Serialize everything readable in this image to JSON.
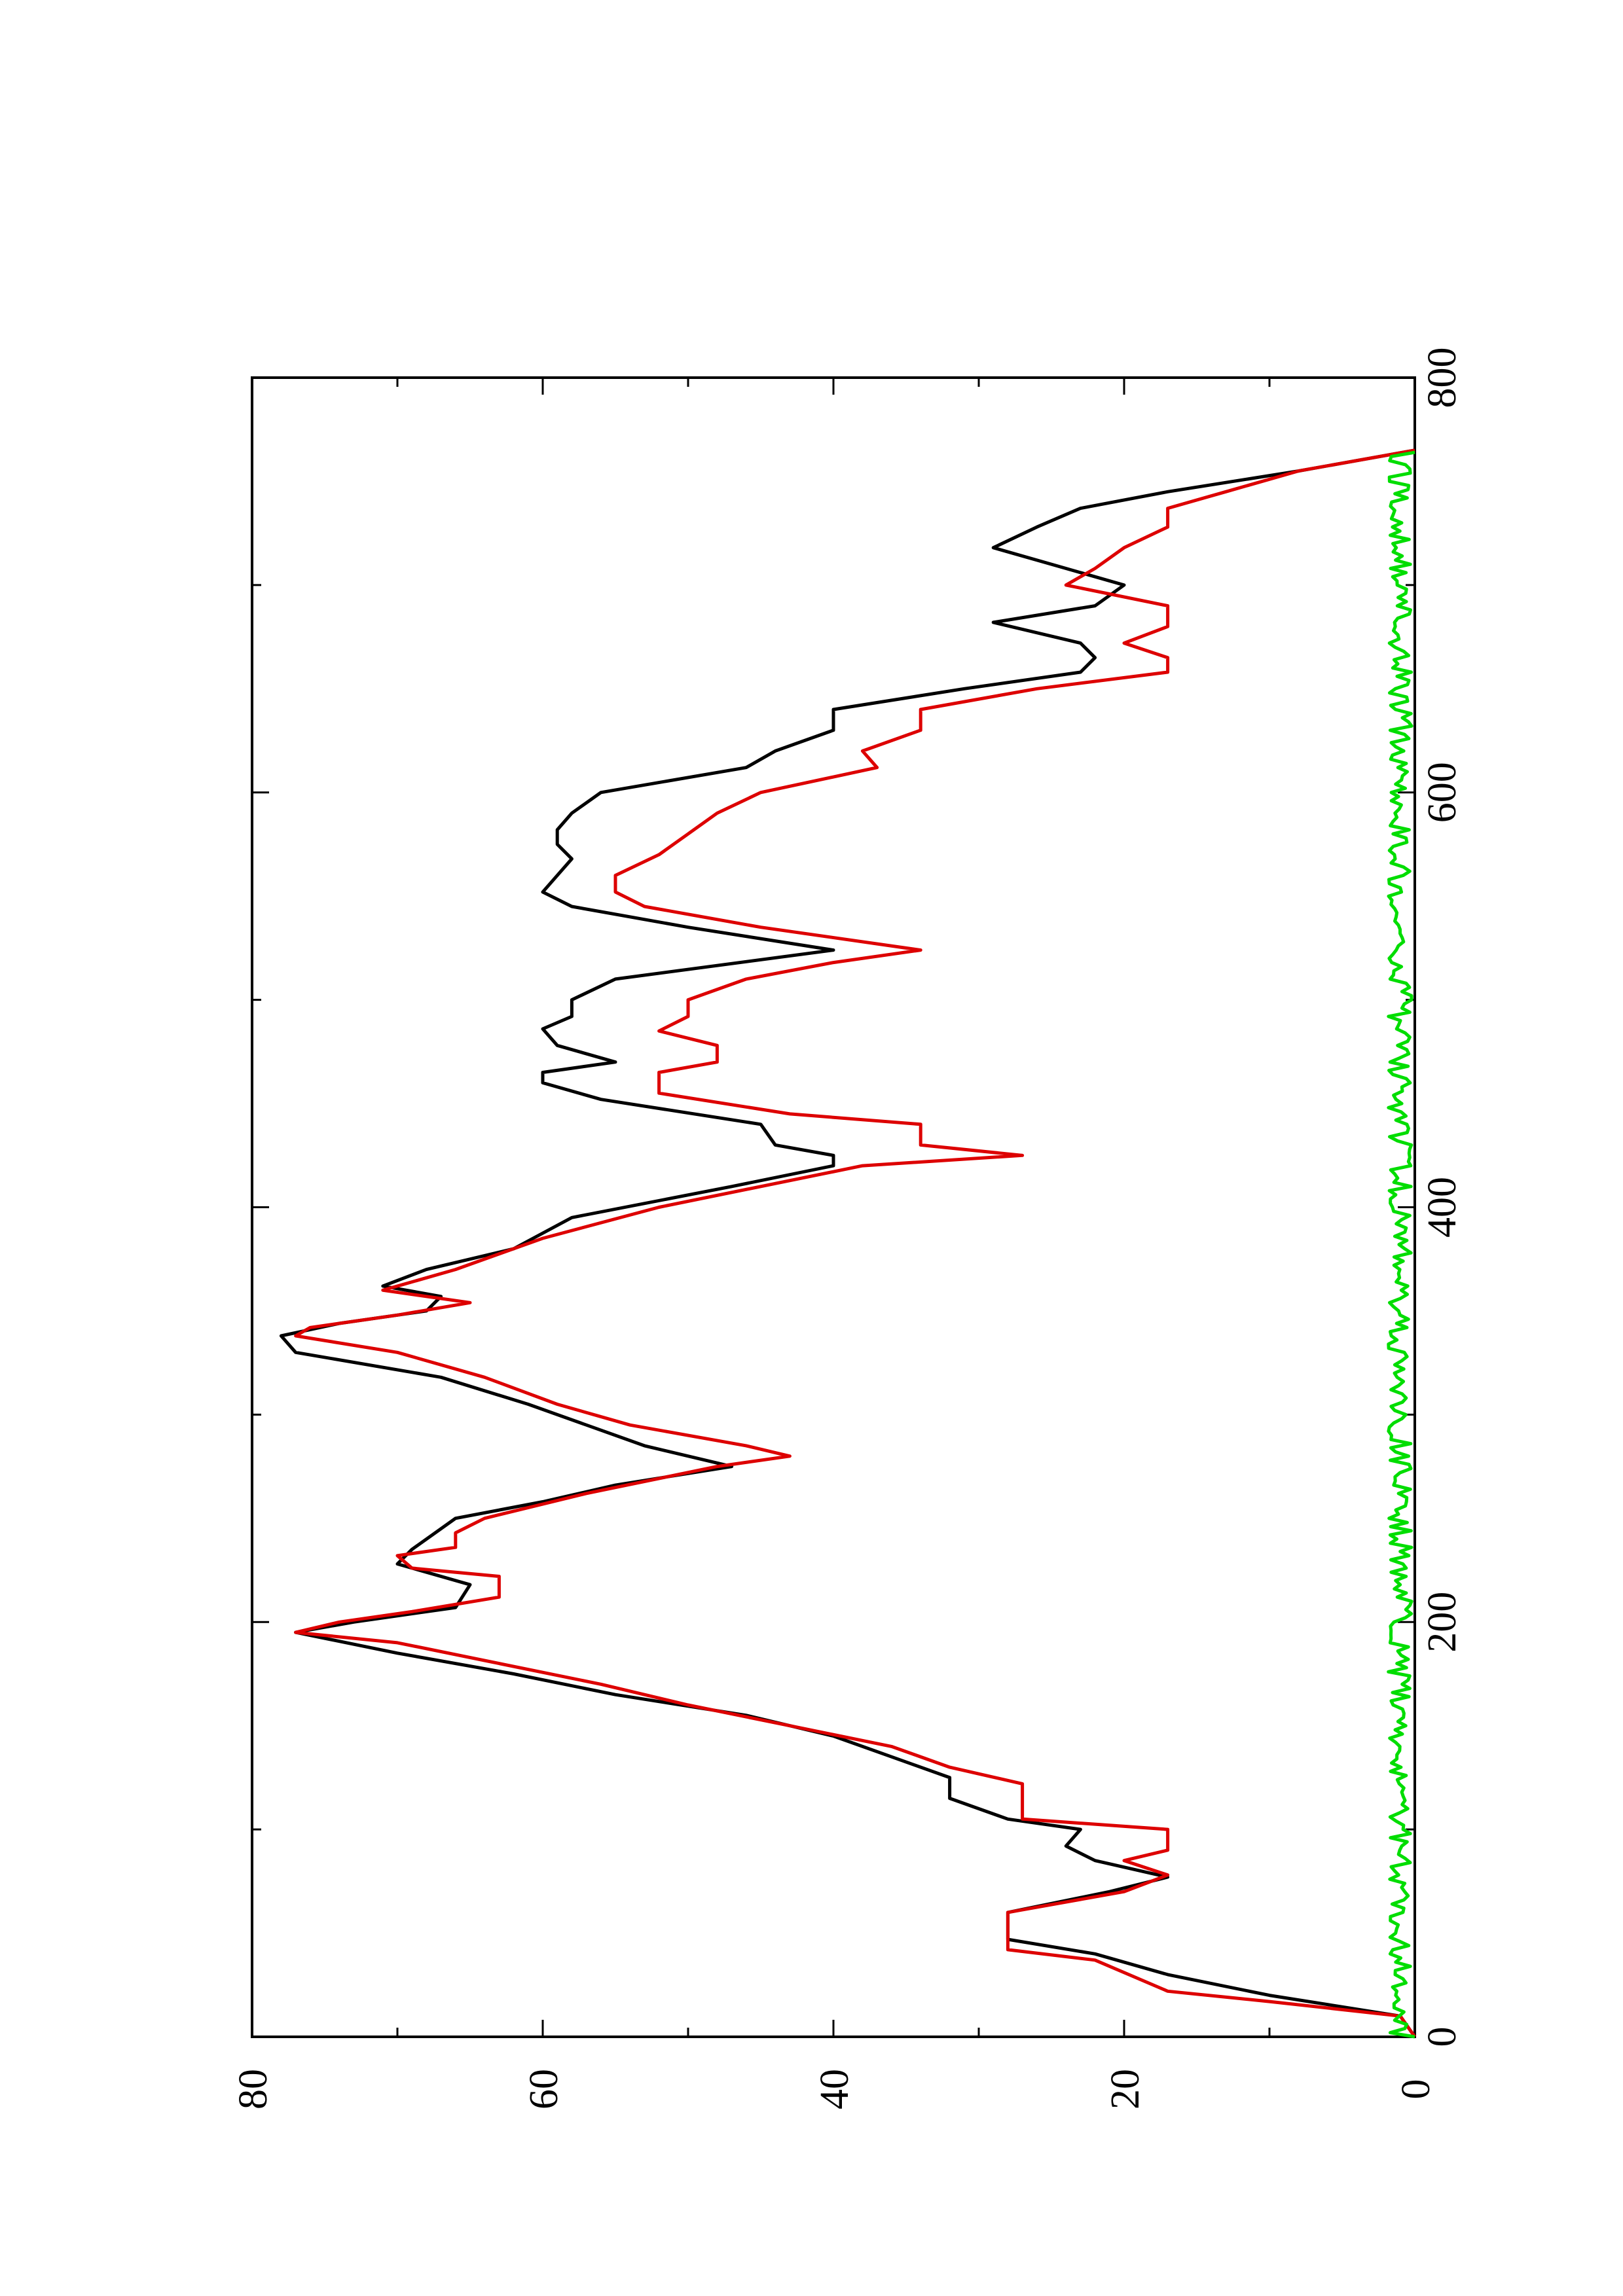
{
  "chart_data": {
    "type": "line",
    "title": "",
    "xlabel": "",
    "ylabel": "",
    "xlim": [
      0,
      800
    ],
    "ylim": [
      0,
      80
    ],
    "x_ticks": [
      0,
      200,
      400,
      600,
      800
    ],
    "y_ticks": [
      0,
      20,
      40,
      60,
      80
    ],
    "x_minor_ticks": [
      100,
      300,
      500,
      700
    ],
    "y_minor_ticks": [
      10,
      30,
      50,
      70
    ],
    "grid": false,
    "legend": "none",
    "orientation": "rotated 90 degrees counter-clockwise on the page",
    "series": [
      {
        "color": "#000000",
        "points": [
          [
            0,
            0
          ],
          [
            10,
            1
          ],
          [
            20,
            10
          ],
          [
            30,
            17
          ],
          [
            40,
            22
          ],
          [
            47,
            28
          ],
          [
            60,
            28
          ],
          [
            70,
            21
          ],
          [
            77,
            17
          ],
          [
            85,
            22
          ],
          [
            92,
            24
          ],
          [
            100,
            23
          ],
          [
            105,
            28
          ],
          [
            115,
            32
          ],
          [
            125,
            32
          ],
          [
            135,
            36
          ],
          [
            145,
            40
          ],
          [
            155,
            46
          ],
          [
            165,
            55
          ],
          [
            175,
            62
          ],
          [
            185,
            70
          ],
          [
            195,
            77
          ],
          [
            200,
            73
          ],
          [
            207,
            66
          ],
          [
            218,
            65
          ],
          [
            228,
            70
          ],
          [
            235,
            69
          ],
          [
            245,
            67
          ],
          [
            250,
            66
          ],
          [
            258,
            60
          ],
          [
            266,
            55
          ],
          [
            275,
            47
          ],
          [
            285,
            53
          ],
          [
            295,
            57
          ],
          [
            305,
            61
          ],
          [
            318,
            67
          ],
          [
            330,
            77
          ],
          [
            338,
            78
          ],
          [
            344,
            74
          ],
          [
            350,
            68
          ],
          [
            357,
            67
          ],
          [
            362,
            71
          ],
          [
            370,
            68
          ],
          [
            380,
            62
          ],
          [
            395,
            58
          ],
          [
            410,
            47
          ],
          [
            420,
            40
          ],
          [
            425,
            40
          ],
          [
            430,
            44
          ],
          [
            440,
            45
          ],
          [
            452,
            56
          ],
          [
            460,
            60
          ],
          [
            465,
            60
          ],
          [
            470,
            55
          ],
          [
            478,
            59
          ],
          [
            486,
            60
          ],
          [
            492,
            58
          ],
          [
            500,
            58
          ],
          [
            510,
            55
          ],
          [
            524,
            40
          ],
          [
            535,
            50
          ],
          [
            545,
            58
          ],
          [
            552,
            60
          ],
          [
            560,
            59
          ],
          [
            568,
            58
          ],
          [
            575,
            59
          ],
          [
            582,
            59
          ],
          [
            590,
            58
          ],
          [
            600,
            56
          ],
          [
            612,
            46
          ],
          [
            620,
            44
          ],
          [
            630,
            40
          ],
          [
            640,
            40
          ],
          [
            650,
            31
          ],
          [
            658,
            23
          ],
          [
            665,
            22
          ],
          [
            672,
            23
          ],
          [
            682,
            29
          ],
          [
            690,
            22
          ],
          [
            700,
            20
          ],
          [
            708,
            24
          ],
          [
            718,
            29
          ],
          [
            728,
            26
          ],
          [
            737,
            23
          ],
          [
            745,
            17
          ],
          [
            755,
            8
          ],
          [
            765,
            0
          ]
        ]
      },
      {
        "color": "#dd0000",
        "points": [
          [
            0,
            0
          ],
          [
            10,
            1
          ],
          [
            17,
            10
          ],
          [
            22,
            17
          ],
          [
            37,
            22
          ],
          [
            42,
            28
          ],
          [
            60,
            28
          ],
          [
            70,
            20
          ],
          [
            78,
            17
          ],
          [
            85,
            20
          ],
          [
            90,
            17
          ],
          [
            100,
            17
          ],
          [
            105,
            27
          ],
          [
            122,
            27
          ],
          [
            130,
            32
          ],
          [
            140,
            36
          ],
          [
            150,
            43
          ],
          [
            160,
            50
          ],
          [
            170,
            56
          ],
          [
            180,
            63
          ],
          [
            190,
            70
          ],
          [
            195,
            77
          ],
          [
            200,
            74
          ],
          [
            205,
            69
          ],
          [
            212,
            63
          ],
          [
            222,
            63
          ],
          [
            226,
            69
          ],
          [
            232,
            70
          ],
          [
            236,
            66
          ],
          [
            243,
            66
          ],
          [
            250,
            64
          ],
          [
            262,
            57
          ],
          [
            275,
            48
          ],
          [
            280,
            43
          ],
          [
            285,
            46
          ],
          [
            295,
            54
          ],
          [
            305,
            59
          ],
          [
            318,
            64
          ],
          [
            330,
            70
          ],
          [
            338,
            77
          ],
          [
            342,
            76
          ],
          [
            348,
            70
          ],
          [
            354,
            65
          ],
          [
            360,
            71
          ],
          [
            370,
            66
          ],
          [
            385,
            60
          ],
          [
            400,
            52
          ],
          [
            410,
            45
          ],
          [
            420,
            38
          ],
          [
            425,
            27
          ],
          [
            430,
            34
          ],
          [
            440,
            34
          ],
          [
            445,
            43
          ],
          [
            455,
            52
          ],
          [
            465,
            52
          ],
          [
            470,
            48
          ],
          [
            478,
            48
          ],
          [
            485,
            52
          ],
          [
            492,
            50
          ],
          [
            500,
            50
          ],
          [
            510,
            46
          ],
          [
            518,
            40
          ],
          [
            524,
            34
          ],
          [
            535,
            45
          ],
          [
            545,
            53
          ],
          [
            552,
            55
          ],
          [
            560,
            55
          ],
          [
            570,
            52
          ],
          [
            580,
            50
          ],
          [
            590,
            48
          ],
          [
            600,
            45
          ],
          [
            612,
            37
          ],
          [
            620,
            38
          ],
          [
            630,
            34
          ],
          [
            640,
            34
          ],
          [
            650,
            26
          ],
          [
            658,
            17
          ],
          [
            665,
            17
          ],
          [
            672,
            20
          ],
          [
            680,
            17
          ],
          [
            690,
            17
          ],
          [
            700,
            24
          ],
          [
            708,
            22
          ],
          [
            718,
            20
          ],
          [
            728,
            17
          ],
          [
            737,
            17
          ],
          [
            745,
            13
          ],
          [
            755,
            8
          ],
          [
            765,
            0
          ]
        ]
      },
      {
        "color": "#00dd00",
        "baseline": 0.7,
        "amplitude": 0.8,
        "x_range": [
          0,
          765
        ]
      }
    ]
  }
}
